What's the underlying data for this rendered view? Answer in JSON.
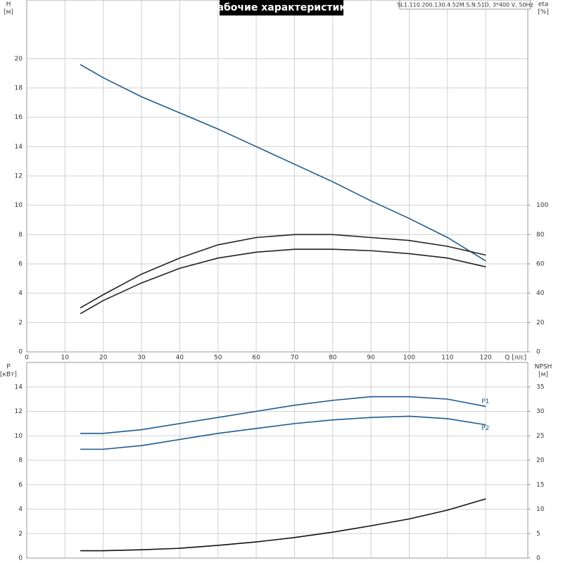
{
  "chart_data": [
    {
      "type": "line",
      "title": "Рабочие характеристики",
      "subtitle": "SL1.110.200.130.4.52M.S.N.51D, 3*400 V, 50Hz",
      "y_label": "H",
      "y_unit": "[м]",
      "y2_label": "eta",
      "y2_unit": "[%]",
      "x_label": "Q [л/с]",
      "x": [
        14,
        20,
        30,
        40,
        50,
        60,
        70,
        80,
        90,
        100,
        110,
        120
      ],
      "xlim": [
        0,
        131
      ],
      "xticks": [
        0,
        10,
        20,
        30,
        40,
        50,
        60,
        70,
        80,
        90,
        100,
        110,
        120
      ],
      "ylim": [
        0,
        24
      ],
      "yticks": [
        0,
        2,
        4,
        6,
        8,
        10,
        12,
        14,
        16,
        18,
        20
      ],
      "y2lim": [
        0,
        240
      ],
      "y2ticks": [
        0,
        20,
        40,
        60,
        80,
        100
      ],
      "grid": true,
      "series": [
        {
          "color": "#1f5b8f",
          "values": [
            19.6,
            18.7,
            17.4,
            16.3,
            15.2,
            14.0,
            12.8,
            11.6,
            10.3,
            9.1,
            7.8,
            6.2
          ]
        },
        {
          "color": "#222222",
          "axis": "y2",
          "values": [
            30,
            39,
            53,
            64,
            73,
            78,
            80,
            80,
            78,
            76,
            72,
            66
          ]
        },
        {
          "color": "#222222",
          "axis": "y2",
          "values": [
            26,
            35,
            47,
            57,
            64,
            68,
            70,
            70,
            69,
            67,
            64,
            58
          ]
        }
      ]
    },
    {
      "type": "line",
      "y_label": "P",
      "y_unit": "[кВт]",
      "y2_label": "NPSH",
      "y2_unit": "[м]",
      "x": [
        14,
        20,
        30,
        40,
        50,
        60,
        70,
        80,
        90,
        100,
        110,
        120
      ],
      "xlim": [
        0,
        131
      ],
      "xticks": [
        0,
        10,
        20,
        30,
        40,
        50,
        60,
        70,
        80,
        90,
        100,
        110,
        120
      ],
      "ylim": [
        0,
        16
      ],
      "yticks": [
        0,
        2,
        4,
        6,
        8,
        10,
        12,
        14
      ],
      "y2lim": [
        0,
        40
      ],
      "y2ticks": [
        0,
        5,
        10,
        15,
        20,
        25,
        30,
        35
      ],
      "grid": true,
      "series": [
        {
          "name": "P1",
          "color": "#1f5b8f",
          "values": [
            10.2,
            10.2,
            10.5,
            11.0,
            11.5,
            12.0,
            12.5,
            12.9,
            13.2,
            13.2,
            13.0,
            12.4
          ]
        },
        {
          "name": "P2",
          "color": "#1f5b8f",
          "values": [
            8.9,
            8.9,
            9.2,
            9.7,
            10.2,
            10.6,
            11.0,
            11.3,
            11.5,
            11.6,
            11.4,
            10.9
          ]
        },
        {
          "color": "#111111",
          "axis": "y2",
          "values": [
            1.5,
            1.5,
            1.7,
            2.0,
            2.6,
            3.3,
            4.2,
            5.3,
            6.6,
            8.0,
            9.8,
            12.1
          ]
        }
      ]
    }
  ]
}
